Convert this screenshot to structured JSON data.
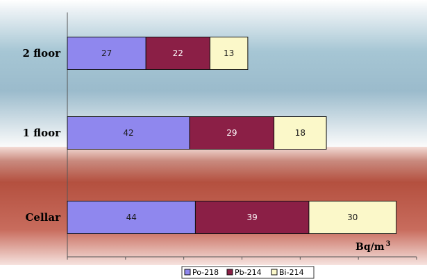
{
  "chart_data": {
    "type": "bar",
    "orientation": "horizontal",
    "stacked": true,
    "categories": [
      "2 floor",
      "1 floor",
      "Cellar"
    ],
    "series": [
      {
        "name": "Po-218",
        "values": [
          27,
          42,
          44
        ],
        "color": "#8f87ee",
        "label_color": "#1a1a1a"
      },
      {
        "name": "Pb-214",
        "values": [
          22,
          29,
          39
        ],
        "color": "#8b1f46",
        "label_color": "#ffffff"
      },
      {
        "name": "Bi-214",
        "values": [
          13,
          18,
          30
        ],
        "color": "#fbf8c9",
        "label_color": "#1a1a1a"
      }
    ],
    "unit": {
      "base": "Bq/m",
      "exponent": "3"
    },
    "xlim": [
      0,
      120
    ],
    "x_tick_step": 20,
    "legend_position": "bottom",
    "grid": false
  }
}
